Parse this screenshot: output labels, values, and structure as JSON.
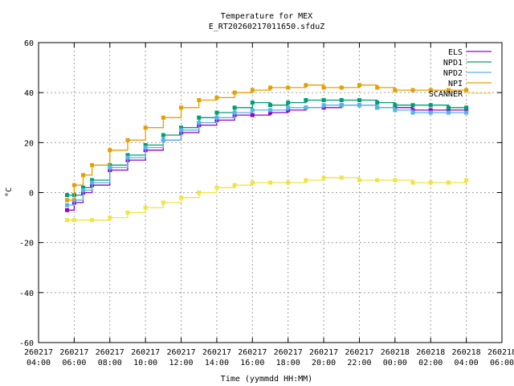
{
  "chart_data": {
    "type": "line",
    "title": "Temperature for MEX",
    "subtitle": "E_RT20260217011650.sfduZ",
    "xlabel": "Time (yymmdd HH:MM)",
    "ylabel": "°C",
    "ylim": [
      -60,
      60
    ],
    "yticks": [
      "-60",
      "-40",
      "-20",
      "0",
      "20",
      "40",
      "60"
    ],
    "xlim_hours": [
      4,
      30
    ],
    "xticks": [
      {
        "date": "260217",
        "time": "04:00"
      },
      {
        "date": "260217",
        "time": "06:00"
      },
      {
        "date": "260217",
        "time": "08:00"
      },
      {
        "date": "260217",
        "time": "10:00"
      },
      {
        "date": "260217",
        "time": "12:00"
      },
      {
        "date": "260217",
        "time": "14:00"
      },
      {
        "date": "260217",
        "time": "16:00"
      },
      {
        "date": "260217",
        "time": "18:00"
      },
      {
        "date": "260217",
        "time": "20:00"
      },
      {
        "date": "260217",
        "time": "22:00"
      },
      {
        "date": "260218",
        "time": "00:00"
      },
      {
        "date": "260218",
        "time": "02:00"
      },
      {
        "date": "260218",
        "time": "04:00"
      },
      {
        "date": "260218",
        "time": "06:00"
      }
    ],
    "grid": true,
    "legend_position": "top-right",
    "series": [
      {
        "name": "ELS",
        "color": "#9400d3",
        "x": [
          5.6,
          6.0,
          6.5,
          7.0,
          8.0,
          9.0,
          10.0,
          11.0,
          12.0,
          13.0,
          14.0,
          15.0,
          16.0,
          17.0,
          18.0,
          19.0,
          20.0,
          21.0,
          22.0,
          23.0,
          24.0,
          25.0,
          26.0,
          27.0,
          28.0
        ],
        "y": [
          -7,
          -4,
          0,
          3,
          9,
          13,
          17,
          21,
          24,
          27,
          29,
          31,
          31,
          32,
          33,
          34,
          34,
          35,
          35,
          34,
          34,
          33,
          33,
          33,
          33
        ]
      },
      {
        "name": "NPD1",
        "color": "#009e73",
        "x": [
          5.6,
          6.0,
          6.5,
          7.0,
          8.0,
          9.0,
          10.0,
          11.0,
          12.0,
          13.0,
          14.0,
          15.0,
          16.0,
          17.0,
          18.0,
          19.0,
          20.0,
          21.0,
          22.0,
          23.0,
          24.0,
          25.0,
          26.0,
          27.0,
          28.0
        ],
        "y": [
          -1,
          -1,
          2,
          5,
          11,
          15,
          19,
          23,
          26,
          30,
          32,
          34,
          36,
          35,
          36,
          37,
          37,
          37,
          37,
          36,
          35,
          35,
          35,
          34,
          34
        ]
      },
      {
        "name": "NPD2",
        "color": "#56b4e9",
        "x": [
          5.6,
          6.0,
          6.5,
          7.0,
          8.0,
          9.0,
          10.0,
          11.0,
          12.0,
          13.0,
          14.0,
          15.0,
          16.0,
          17.0,
          18.0,
          19.0,
          20.0,
          21.0,
          22.0,
          23.0,
          24.0,
          25.0,
          26.0,
          27.0,
          28.0
        ],
        "y": [
          -5,
          -3,
          1,
          4,
          10,
          14,
          18,
          21,
          25,
          28,
          30,
          32,
          33,
          33,
          34,
          34,
          35,
          35,
          35,
          34,
          33,
          32,
          32,
          32,
          32
        ]
      },
      {
        "name": "NPI",
        "color": "#e69f00",
        "x": [
          5.6,
          6.0,
          6.5,
          7.0,
          8.0,
          9.0,
          10.0,
          11.0,
          12.0,
          13.0,
          14.0,
          15.0,
          16.0,
          17.0,
          18.0,
          19.0,
          20.0,
          21.0,
          22.0,
          23.0,
          24.0,
          25.0,
          26.0,
          27.0,
          28.0
        ],
        "y": [
          -3,
          3,
          7,
          11,
          17,
          21,
          26,
          30,
          34,
          37,
          38,
          40,
          41,
          42,
          42,
          43,
          42,
          42,
          43,
          42,
          41,
          41,
          41,
          41,
          41
        ]
      },
      {
        "name": "SCANNER",
        "color": "#f0e442",
        "x": [
          5.6,
          6.0,
          7.0,
          8.0,
          9.0,
          10.0,
          11.0,
          12.0,
          13.0,
          14.0,
          15.0,
          16.0,
          17.0,
          18.0,
          19.0,
          20.0,
          21.0,
          22.0,
          23.0,
          24.0,
          25.0,
          26.0,
          27.0,
          28.0
        ],
        "y": [
          -11,
          -11,
          -11,
          -10,
          -8,
          -6,
          -4,
          -2,
          0,
          2,
          3,
          4,
          4,
          4,
          5,
          6,
          6,
          5,
          5,
          5,
          4,
          4,
          4,
          5
        ]
      }
    ]
  }
}
